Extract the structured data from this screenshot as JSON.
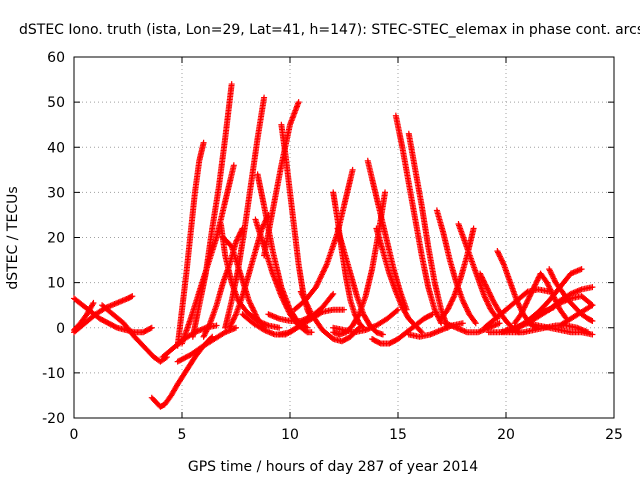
{
  "chart_data": {
    "type": "scatter",
    "title": "dSTEC Iono. truth (ista, Lon=29, Lat=41, h=147): STEC-STEC_elemax in phase cont. arcs",
    "xlabel": "GPS time / hours of day 287 of year 2014",
    "ylabel": "dSTEC  / TECUs",
    "xlim": [
      0,
      25
    ],
    "ylim": [
      -20,
      60
    ],
    "xticks": [
      0,
      5,
      10,
      15,
      20,
      25
    ],
    "yticks": [
      -20,
      -10,
      0,
      10,
      20,
      30,
      40,
      50,
      60
    ],
    "grid": true,
    "marker": "plus",
    "color": "#ff0000",
    "series": [
      {
        "x": [
          0.0,
          0.5,
          1.0,
          1.5,
          2.0,
          2.5,
          2.7
        ],
        "y": [
          -1,
          1,
          3,
          4.5,
          5.5,
          6.5,
          7
        ]
      },
      {
        "x": [
          0.0,
          0.4,
          0.8,
          1.2,
          1.6,
          2.0,
          2.4,
          2.8,
          3.2,
          3.6
        ],
        "y": [
          6.5,
          5,
          3.5,
          2,
          1,
          0,
          -0.5,
          -1,
          -1,
          0
        ]
      },
      {
        "x": [
          0.0,
          0.3,
          0.6,
          0.9
        ],
        "y": [
          -0.5,
          1,
          3,
          5.5
        ]
      },
      {
        "x": [
          1.3,
          1.8,
          2.3,
          2.8,
          3.3,
          3.7,
          4.0,
          4.3
        ],
        "y": [
          5,
          3,
          1,
          -2,
          -4.5,
          -6.5,
          -7.5,
          -6.5
        ]
      },
      {
        "x": [
          3.6,
          3.8,
          4.0,
          4.2,
          4.5,
          4.8,
          5.2,
          5.6,
          6.0,
          6.4
        ],
        "y": [
          -15.5,
          -16.5,
          -17.5,
          -17,
          -15,
          -12.5,
          -9.5,
          -6.5,
          -4,
          -2
        ]
      },
      {
        "x": [
          4.1,
          4.6,
          5.1,
          5.6,
          6.1,
          6.6
        ],
        "y": [
          -6.5,
          -4.5,
          -2.5,
          -1,
          0,
          0.5
        ]
      },
      {
        "x": [
          4.8,
          5.0,
          5.2,
          5.4,
          5.6,
          5.8,
          6.0
        ],
        "y": [
          -4,
          4,
          12,
          21,
          30,
          37,
          41
        ]
      },
      {
        "x": [
          4.8,
          5.4,
          6.0,
          6.5,
          7.0,
          7.5
        ],
        "y": [
          -7.5,
          -6,
          -4,
          -2.5,
          -1,
          0
        ]
      },
      {
        "x": [
          5.0,
          5.4,
          5.8,
          6.2,
          6.6,
          7.0,
          7.4
        ],
        "y": [
          -3.5,
          2,
          8,
          14,
          20,
          28,
          36
        ]
      },
      {
        "x": [
          5.5,
          5.8,
          6.1,
          6.4,
          6.7,
          7.0,
          7.3
        ],
        "y": [
          -2,
          5,
          12,
          22,
          31,
          42,
          54
        ]
      },
      {
        "x": [
          6.0,
          6.3,
          6.6,
          6.9,
          7.2,
          7.5,
          7.8
        ],
        "y": [
          -2,
          1,
          5,
          10,
          14,
          19,
          22
        ]
      },
      {
        "x": [
          6.9,
          7.3,
          7.7,
          8.1,
          8.5,
          8.8
        ],
        "y": [
          20,
          18,
          12,
          6,
          2,
          0
        ]
      },
      {
        "x": [
          6.8,
          7.0,
          7.3,
          7.6,
          8.0,
          8.5,
          9.0,
          9.5
        ],
        "y": [
          23,
          16,
          10,
          6,
          3.5,
          1.5,
          0.5,
          0
        ]
      },
      {
        "x": [
          7.0,
          7.3,
          7.6,
          7.9,
          8.2,
          8.5,
          8.8
        ],
        "y": [
          0,
          6,
          13,
          22,
          32,
          42,
          51
        ]
      },
      {
        "x": [
          7.2,
          7.5,
          7.8,
          8.1,
          8.4,
          8.7,
          9.0
        ],
        "y": [
          0,
          3,
          7,
          12,
          17,
          22,
          25
        ]
      },
      {
        "x": [
          8.5,
          8.8,
          9.2,
          9.6,
          10.0,
          10.4,
          10.8
        ],
        "y": [
          34,
          27,
          17,
          9,
          4,
          1,
          0
        ]
      },
      {
        "x": [
          8.4,
          8.8,
          9.2,
          9.6,
          10.0,
          10.4,
          10.8,
          11.0
        ],
        "y": [
          24,
          18,
          12,
          7,
          3,
          0.5,
          -1,
          -1
        ]
      },
      {
        "x": [
          7.8,
          8.3,
          8.8,
          9.3,
          9.8,
          10.3,
          10.8
        ],
        "y": [
          3,
          1,
          -0.5,
          -1.5,
          -1.5,
          0,
          2
        ]
      },
      {
        "x": [
          8.8,
          9.2,
          9.6,
          10.0,
          10.4
        ],
        "y": [
          16,
          26,
          36,
          45,
          50
        ]
      },
      {
        "x": [
          9.6,
          9.8,
          10.0,
          10.2,
          10.4,
          10.6,
          10.8,
          11.0
        ],
        "y": [
          45,
          38,
          30,
          22,
          14,
          8,
          4,
          2
        ]
      },
      {
        "x": [
          9.0,
          9.5,
          10.0,
          10.5,
          11.0,
          11.5,
          12.0
        ],
        "y": [
          3,
          2,
          1.5,
          1.5,
          2.5,
          4.5,
          7.5
        ]
      },
      {
        "x": [
          9.5,
          10.0,
          10.5,
          11.0,
          11.5,
          12.0,
          12.5
        ],
        "y": [
          -1.5,
          -1,
          0.5,
          2,
          3.5,
          4,
          4
        ]
      },
      {
        "x": [
          10.5,
          11.0,
          11.5,
          12.0,
          12.4,
          12.8,
          13.2
        ],
        "y": [
          8,
          3,
          -0.5,
          -2.5,
          -3,
          -2,
          0
        ]
      },
      {
        "x": [
          10.2,
          10.7,
          11.2,
          11.7,
          12.2,
          12.6,
          12.9
        ],
        "y": [
          4,
          6,
          9,
          14,
          21,
          29,
          35
        ]
      },
      {
        "x": [
          12.0,
          12.2,
          12.4,
          12.6,
          12.8,
          13.0,
          13.2,
          13.4
        ],
        "y": [
          30,
          24,
          17,
          11,
          6,
          3,
          1,
          0
        ]
      },
      {
        "x": [
          12.2,
          12.5,
          12.8,
          13.1,
          13.4,
          13.7,
          14.0,
          14.3
        ],
        "y": [
          22,
          17,
          12,
          7,
          3,
          0.5,
          -1,
          -1.5
        ]
      },
      {
        "x": [
          12.0,
          12.3,
          12.6,
          12.9,
          13.2,
          13.5,
          13.8,
          14.1,
          14.4
        ],
        "y": [
          -1,
          -1.5,
          -1,
          0.5,
          3,
          7,
          13,
          21,
          30
        ]
      },
      {
        "x": [
          12.0,
          12.5,
          13.0,
          13.5,
          14.0,
          14.5,
          15.0
        ],
        "y": [
          0,
          -0.5,
          -1,
          -0.5,
          0.5,
          2,
          4
        ]
      },
      {
        "x": [
          13.6,
          13.9,
          14.2,
          14.5,
          14.8,
          15.1,
          15.4
        ],
        "y": [
          37,
          31,
          25,
          19,
          13,
          8,
          4
        ]
      },
      {
        "x": [
          14.0,
          14.3,
          14.6,
          14.9,
          15.2,
          15.5,
          15.8,
          16.1
        ],
        "y": [
          22,
          17,
          12,
          8,
          4.5,
          2,
          0.5,
          -1
        ]
      },
      {
        "x": [
          13.8,
          14.2,
          14.6,
          15.0,
          15.4,
          15.8,
          16.2,
          16.6
        ],
        "y": [
          -2.5,
          -3.5,
          -3.5,
          -2.5,
          -1,
          0.5,
          2,
          3
        ]
      },
      {
        "x": [
          14.9,
          15.2,
          15.5,
          15.8,
          16.1,
          16.4,
          16.7,
          17.0
        ],
        "y": [
          47,
          40,
          32,
          24,
          16,
          9,
          4,
          1
        ]
      },
      {
        "x": [
          15.5,
          15.8,
          16.1,
          16.4,
          16.7,
          17.0,
          17.3
        ],
        "y": [
          43,
          35,
          27,
          18,
          10,
          4,
          0
        ]
      },
      {
        "x": [
          15.5,
          16.0,
          16.5,
          17.0,
          17.5,
          18.0
        ],
        "y": [
          -1.5,
          -2,
          -1.5,
          -0.5,
          0.5,
          1
        ]
      },
      {
        "x": [
          16.8,
          17.1,
          17.4,
          17.7,
          18.0,
          18.3,
          18.6
        ],
        "y": [
          26,
          21,
          15,
          10,
          6,
          3,
          1
        ]
      },
      {
        "x": [
          17.0,
          17.3,
          17.6,
          17.9,
          18.2,
          18.5
        ],
        "y": [
          2,
          4,
          7,
          11,
          16,
          22
        ]
      },
      {
        "x": [
          17.2,
          17.7,
          18.2,
          18.7,
          19.2,
          19.7
        ],
        "y": [
          1,
          0,
          -1,
          -1,
          0,
          1
        ]
      },
      {
        "x": [
          17.8,
          18.1,
          18.4,
          18.7,
          19.0,
          19.3,
          19.6
        ],
        "y": [
          23,
          19,
          15,
          11,
          7,
          4,
          2
        ]
      },
      {
        "x": [
          18.8,
          19.1,
          19.4,
          19.7,
          20.0,
          20.3,
          20.6
        ],
        "y": [
          12,
          9,
          6,
          3.5,
          1.5,
          0,
          -1
        ]
      },
      {
        "x": [
          19.6,
          19.9,
          20.2,
          20.5,
          20.8,
          21.1,
          21.4
        ],
        "y": [
          17,
          14,
          10,
          6,
          3,
          1,
          0
        ]
      },
      {
        "x": [
          19.0,
          19.5,
          20.0,
          20.5,
          21.0,
          21.5,
          22.0
        ],
        "y": [
          0,
          2,
          4,
          6,
          8,
          8.5,
          8
        ]
      },
      {
        "x": [
          19.2,
          19.7,
          20.2,
          20.7,
          21.2,
          21.7,
          22.2
        ],
        "y": [
          -1,
          -1,
          -0.5,
          0.5,
          2,
          3.5,
          4.5
        ]
      },
      {
        "x": [
          20.5,
          21.0,
          21.5,
          22.0,
          22.5,
          23.0,
          23.5
        ],
        "y": [
          0,
          1.5,
          3.5,
          6,
          9,
          12,
          13
        ]
      },
      {
        "x": [
          20.0,
          20.5,
          21.0,
          21.5,
          22.0,
          22.5,
          23.0,
          23.5,
          24.0
        ],
        "y": [
          -0.5,
          0,
          1,
          2.5,
          4,
          6,
          7.5,
          8.5,
          9
        ]
      },
      {
        "x": [
          20.4,
          20.7,
          21.0,
          21.3,
          21.6,
          21.9,
          22.2,
          22.5,
          22.8
        ],
        "y": [
          1,
          3,
          6,
          9,
          12,
          10,
          7,
          4,
          2
        ]
      },
      {
        "x": [
          21.5,
          22.0,
          22.5,
          23.0,
          23.5,
          24.0
        ],
        "y": [
          3,
          4,
          5.5,
          6.5,
          7,
          5
        ]
      },
      {
        "x": [
          22.0,
          22.3,
          22.6,
          22.9,
          23.2,
          23.5,
          23.8,
          24.0
        ],
        "y": [
          13,
          10,
          8,
          6,
          4.5,
          3,
          2,
          1.5
        ]
      },
      {
        "x": [
          21.0,
          21.5,
          22.0,
          22.5,
          23.0,
          23.5,
          24.0
        ],
        "y": [
          1,
          0.5,
          0,
          -0.5,
          -1,
          -1,
          -1.5
        ]
      },
      {
        "x": [
          22.5,
          23.0,
          23.5,
          24.0
        ],
        "y": [
          0.5,
          2,
          3.5,
          5
        ]
      },
      {
        "x": [
          19.8,
          20.3,
          20.8,
          21.3,
          21.8,
          22.3,
          22.8,
          23.3,
          23.8
        ],
        "y": [
          -1,
          -1,
          -1,
          -0.5,
          0,
          0.5,
          0.5,
          0,
          -1
        ]
      }
    ]
  }
}
